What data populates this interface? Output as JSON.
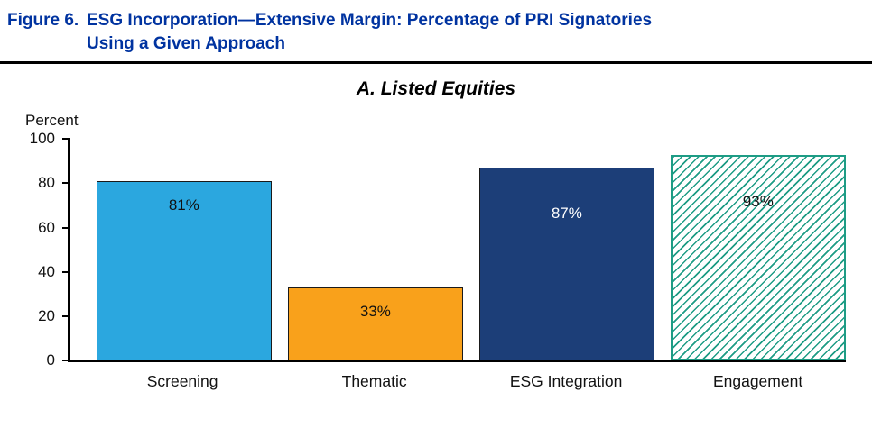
{
  "figure": {
    "label": "Figure 6.",
    "title_line1": "ESG Incorporation—Extensive Margin: Percentage of PRI Signatories",
    "title_line2": "Using a Given Approach"
  },
  "chart_data": {
    "type": "bar",
    "title": "A. Listed Equities",
    "ylabel": "Percent",
    "xlabel": "",
    "ylim": [
      0,
      100
    ],
    "yticks": [
      0,
      20,
      40,
      60,
      80,
      100
    ],
    "grid": false,
    "legend_position": "none",
    "categories": [
      "Screening",
      "Thematic",
      "ESG Integration",
      "Engagement"
    ],
    "values": [
      81,
      33,
      87,
      93
    ],
    "value_labels": [
      "81%",
      "33%",
      "87%",
      "93%"
    ],
    "bar_styles": [
      {
        "fill": "#2BA7DF",
        "pattern": "solid",
        "label_color": "#111111",
        "edge": "#1a1a1a"
      },
      {
        "fill": "#F9A11B",
        "pattern": "solid",
        "label_color": "#111111",
        "edge": "#1a1a1a"
      },
      {
        "fill": "#1C3E78",
        "pattern": "solid",
        "label_color": "#FFFFFF",
        "edge": "#1a1a1a"
      },
      {
        "fill": "#1E9C85",
        "pattern": "diagonal-hatch",
        "label_color": "#111111",
        "edge": "#1E9C85"
      }
    ]
  }
}
